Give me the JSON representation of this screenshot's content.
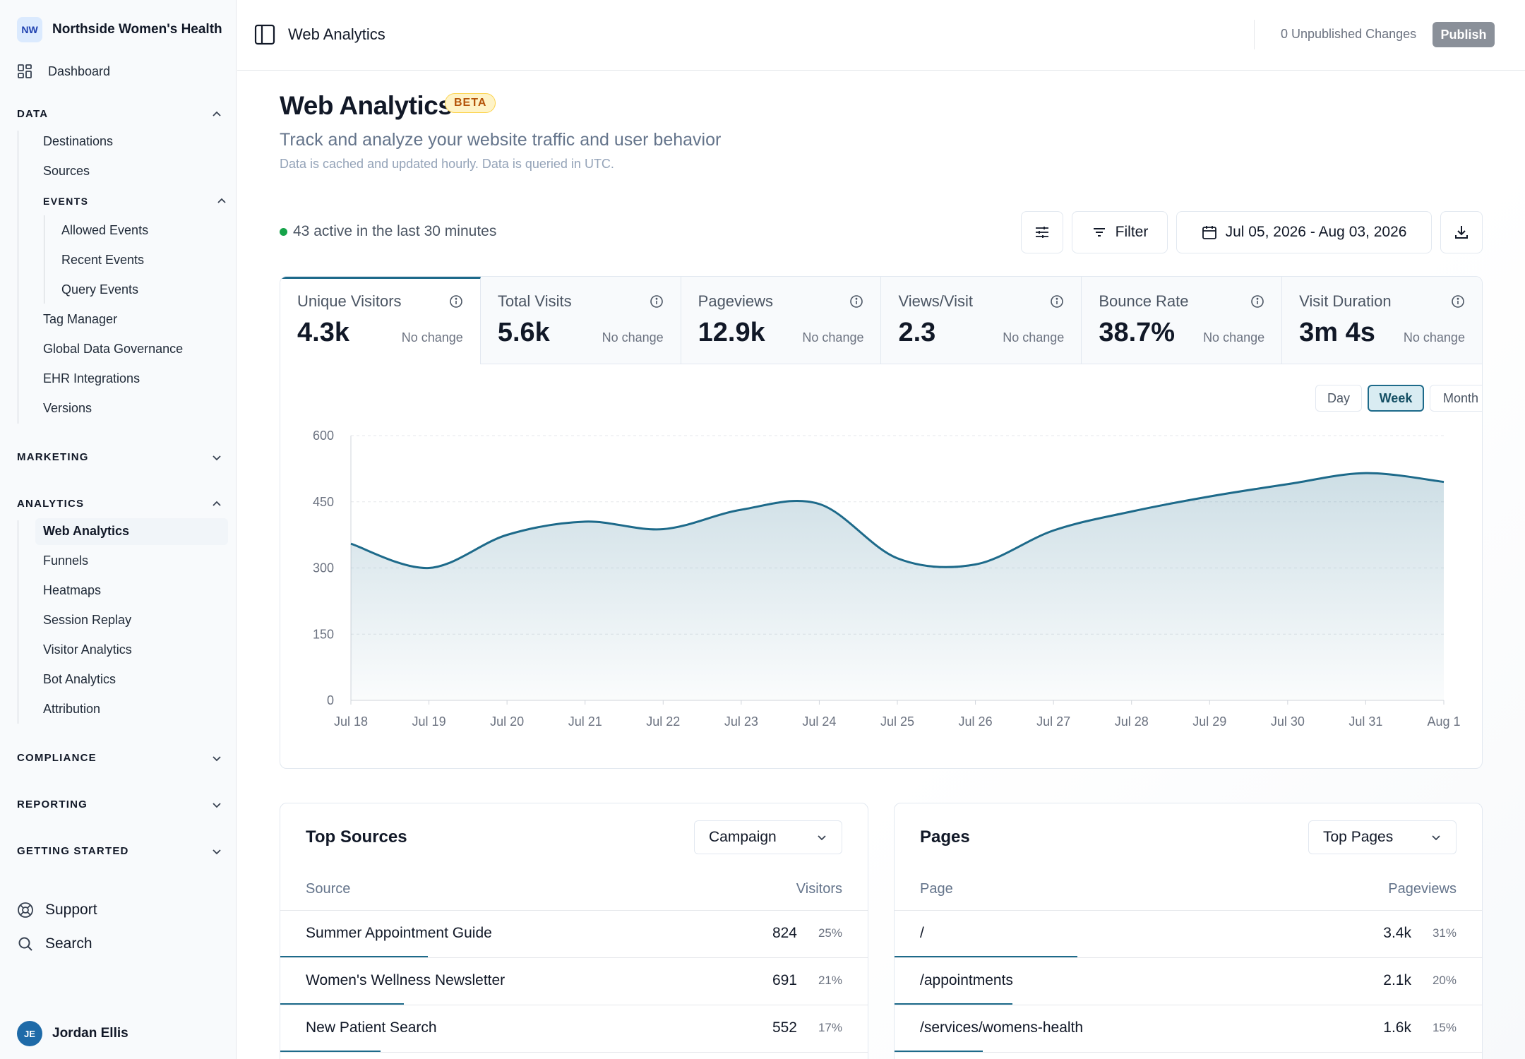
{
  "sidebar": {
    "org_initials": "NW",
    "org_name": "Northside Women's Health",
    "dashboard": "Dashboard",
    "sections": {
      "data": "DATA",
      "events": "EVENTS",
      "marketing": "MARKETING",
      "analytics": "ANALYTICS",
      "compliance": "COMPLIANCE",
      "reporting": "REPORTING",
      "getting_started": "GETTING STARTED"
    },
    "data_items": [
      "Destinations",
      "Sources"
    ],
    "event_items": [
      "Allowed Events",
      "Recent Events",
      "Query Events"
    ],
    "data_items_after": [
      "Tag Manager",
      "Global Data Governance",
      "EHR Integrations",
      "Versions"
    ],
    "analytics_items": [
      "Web Analytics",
      "Funnels",
      "Heatmaps",
      "Session Replay",
      "Visitor Analytics",
      "Bot Analytics",
      "Attribution"
    ],
    "support": "Support",
    "search": "Search",
    "user_initials": "JE",
    "user_name": "Jordan Ellis"
  },
  "topbar": {
    "title": "Web Analytics",
    "unpublished": "0 Unpublished Changes",
    "publish": "Publish"
  },
  "page": {
    "title": "Web Analytics",
    "badge": "BETA",
    "subtitle": "Track and analyze your website traffic and user behavior",
    "note": "Data is cached and updated hourly. Data is queried in UTC.",
    "active_now": "43 active in the last 30 minutes",
    "filter": "Filter",
    "date_range": "Jul 05, 2026 - Aug 03, 2026"
  },
  "stats": [
    {
      "label": "Unique Visitors",
      "value": "4.3k",
      "change": "No change"
    },
    {
      "label": "Total Visits",
      "value": "5.6k",
      "change": "No change"
    },
    {
      "label": "Pageviews",
      "value": "12.9k",
      "change": "No change"
    },
    {
      "label": "Views/Visit",
      "value": "2.3",
      "change": "No change"
    },
    {
      "label": "Bounce Rate",
      "value": "38.7%",
      "change": "No change"
    },
    {
      "label": "Visit Duration",
      "value": "3m 4s",
      "change": "No change"
    }
  ],
  "granularity": {
    "day": "Day",
    "week": "Week",
    "month": "Month",
    "selected": "Week"
  },
  "chart_data": {
    "type": "area",
    "x": [
      "Jul 18",
      "Jul 19",
      "Jul 20",
      "Jul 21",
      "Jul 22",
      "Jul 23",
      "Jul 24",
      "Jul 25",
      "Jul 26",
      "Jul 27",
      "Jul 28",
      "Jul 29",
      "Jul 30",
      "Jul 31",
      "Aug 1"
    ],
    "y_ticks": [
      "0",
      "150",
      "300",
      "450",
      "600"
    ],
    "ylim": [
      0,
      600
    ],
    "series": [
      {
        "values": [
          355,
          300,
          375,
          405,
          388,
          432,
          445,
          322,
          308,
          385,
          428,
          462,
          490,
          515,
          495
        ]
      }
    ],
    "grid": true,
    "color": "#1d6a8a"
  },
  "sources": {
    "title": "Top Sources",
    "select": "Campaign",
    "col1": "Source",
    "col2": "Visitors",
    "rows": [
      {
        "name": "Summer Appointment Guide",
        "value": "824",
        "pct": "25%",
        "share": 0.25
      },
      {
        "name": "Women's Wellness Newsletter",
        "value": "691",
        "pct": "21%",
        "share": 0.21
      },
      {
        "name": "New Patient Search",
        "value": "552",
        "pct": "17%",
        "share": 0.17
      }
    ]
  },
  "pages": {
    "title": "Pages",
    "select": "Top Pages",
    "col1": "Page",
    "col2": "Pageviews",
    "rows": [
      {
        "name": "/",
        "value": "3.4k",
        "pct": "31%",
        "share": 0.31
      },
      {
        "name": "/appointments",
        "value": "2.1k",
        "pct": "20%",
        "share": 0.2
      },
      {
        "name": "/services/womens-health",
        "value": "1.6k",
        "pct": "15%",
        "share": 0.15
      }
    ]
  }
}
